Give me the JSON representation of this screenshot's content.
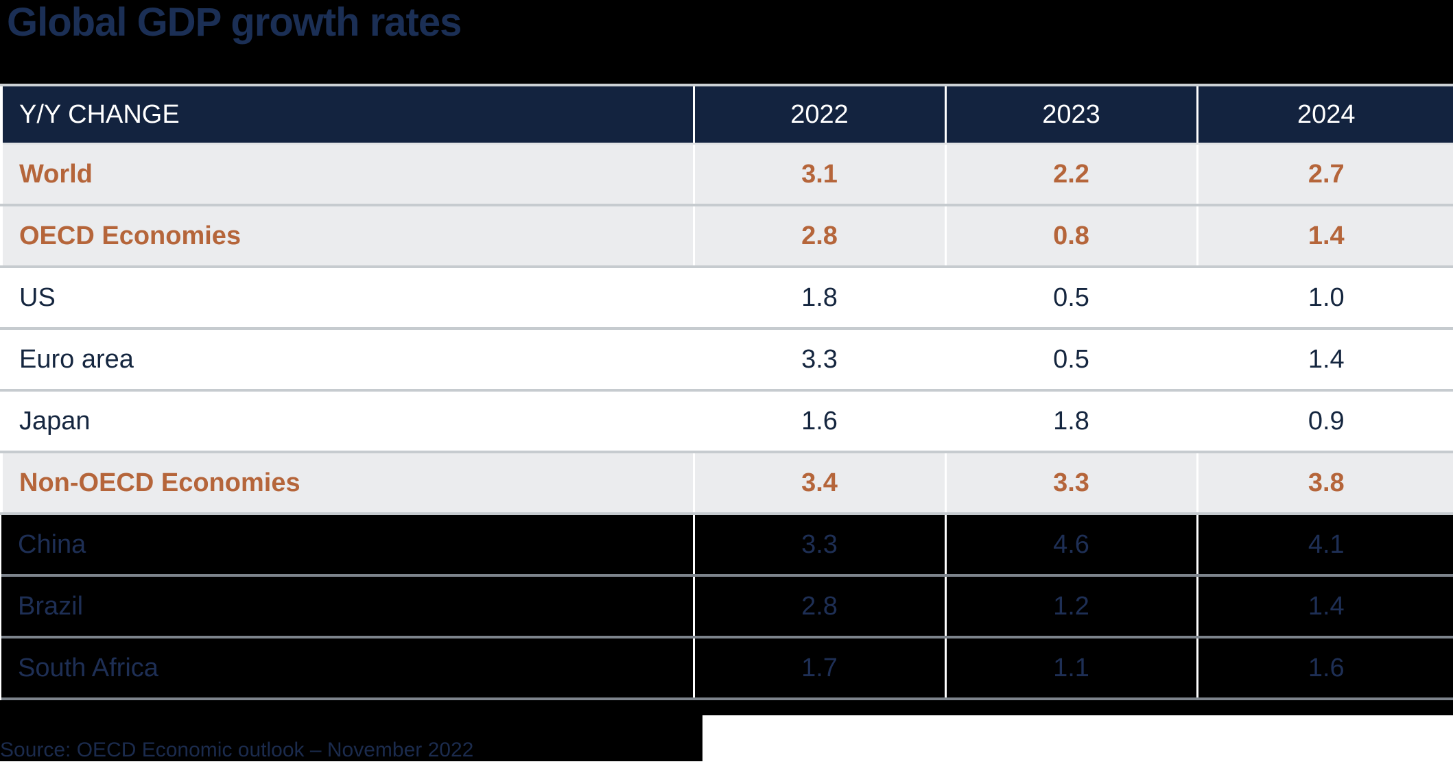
{
  "title": "Global GDP growth rates",
  "source": "Source: OECD Economic outlook – November 2022",
  "colors": {
    "page_background": "#000000",
    "header_bg": "#13233f",
    "header_text": "#ffffff",
    "title_text": "#1b2f55",
    "highlight_row_bg": "#ebecee",
    "highlight_text": "#b5653a",
    "normal_row_bg": "#ffffff",
    "normal_text": "#15263f",
    "dark_row_bg": "#000000",
    "dark_row_text": "#1e2f55",
    "row_divider_light": "#c6cbcf",
    "row_divider_dark": "#7d848c"
  },
  "chart_data": {
    "type": "table",
    "title": "Global GDP growth rates",
    "columns": [
      "Y/Y CHANGE",
      "2022",
      "2023",
      "2024"
    ],
    "rows": [
      {
        "label": "World",
        "values": [
          "3.1",
          "2.2",
          "2.7"
        ],
        "style": "highlight"
      },
      {
        "label": "OECD Economies",
        "values": [
          "2.8",
          "0.8",
          "1.4"
        ],
        "style": "highlight"
      },
      {
        "label": "US",
        "values": [
          "1.8",
          "0.5",
          "1.0"
        ],
        "style": "normal"
      },
      {
        "label": "Euro area",
        "values": [
          "3.3",
          "0.5",
          "1.4"
        ],
        "style": "normal"
      },
      {
        "label": "Japan",
        "values": [
          "1.6",
          "1.8",
          "0.9"
        ],
        "style": "normal"
      },
      {
        "label": "Non-OECD Economies",
        "values": [
          "3.4",
          "3.3",
          "3.8"
        ],
        "style": "highlight"
      },
      {
        "label": "China",
        "values": [
          "3.3",
          "4.6",
          "4.1"
        ],
        "style": "dark"
      },
      {
        "label": "Brazil",
        "values": [
          "2.8",
          "1.2",
          "1.4"
        ],
        "style": "dark"
      },
      {
        "label": "South Africa",
        "values": [
          "1.7",
          "1.1",
          "1.6"
        ],
        "style": "dark"
      }
    ],
    "source": "Source: OECD Economic outlook – November 2022"
  }
}
